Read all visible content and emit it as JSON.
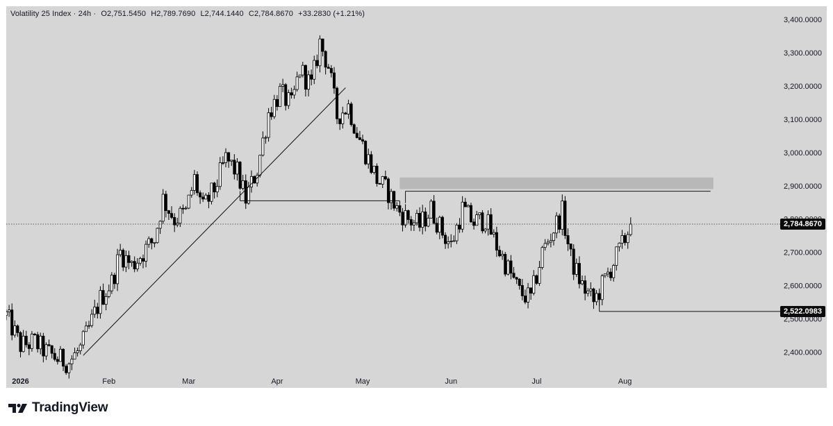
{
  "legend": {
    "symbol": "Volatility 25 Index · 24h ·",
    "open": "O2,751.5450",
    "high": "H2,789.7690",
    "low": "L2,744.1440",
    "close": "C2,784.8670",
    "change": "+33.2830 (+1.21%)"
  },
  "price_labels": {
    "current": "2,784.8670",
    "marked_low": "2,522.0983"
  },
  "branding": {
    "name": "TradingView",
    "logo_icon": "tradingview-logo-icon"
  },
  "colors": {
    "background": "#d6d6d6",
    "candle": "#000000",
    "zone": "#b8b8b8"
  },
  "chart_data": {
    "type": "candlestick",
    "y_axis": {
      "ticks": [
        "3,400.0000",
        "3,300.0000",
        "3,200.0000",
        "3,100.0000",
        "3,000.0000",
        "2,900.0000",
        "2,800.0000",
        "2,700.0000",
        "2,600.0000",
        "2,500.0000",
        "2,400.0000"
      ],
      "ylim": [
        2330,
        3440
      ]
    },
    "x_axis": {
      "ticks": [
        "2026",
        "Feb",
        "Mar",
        "Apr",
        "May",
        "Jun",
        "Jul",
        "Aug"
      ]
    },
    "close_path": [
      [
        "2025-12-27",
        2510
      ],
      [
        "2026-01-01",
        2420
      ],
      [
        "2026-01-06",
        2430
      ],
      [
        "2026-01-10",
        2400
      ],
      [
        "2026-01-14",
        2380
      ],
      [
        "2026-01-18",
        2370
      ],
      [
        "2026-01-22",
        2410
      ],
      [
        "2026-01-25",
        2470
      ],
      [
        "2026-01-29",
        2560
      ],
      [
        "2026-02-02",
        2610
      ],
      [
        "2026-02-05",
        2700
      ],
      [
        "2026-02-09",
        2660
      ],
      [
        "2026-02-13",
        2700
      ],
      [
        "2026-02-17",
        2740
      ],
      [
        "2026-02-20",
        2860
      ],
      [
        "2026-02-24",
        2800
      ],
      [
        "2026-02-28",
        2820
      ],
      [
        "2026-03-03",
        2920
      ],
      [
        "2026-03-06",
        2830
      ],
      [
        "2026-03-10",
        2890
      ],
      [
        "2026-03-14",
        2980
      ],
      [
        "2026-03-18",
        2940
      ],
      [
        "2026-03-21",
        2860
      ],
      [
        "2026-03-25",
        2950
      ],
      [
        "2026-03-29",
        3120
      ],
      [
        "2026-04-02",
        3180
      ],
      [
        "2026-04-06",
        3140
      ],
      [
        "2026-04-09",
        3250
      ],
      [
        "2026-04-13",
        3200
      ],
      [
        "2026-04-16",
        3330
      ],
      [
        "2026-04-19",
        3260
      ],
      [
        "2026-04-22",
        3110
      ],
      [
        "2026-04-26",
        3140
      ],
      [
        "2026-04-29",
        3060
      ],
      [
        "2026-05-03",
        2980
      ],
      [
        "2026-05-06",
        2920
      ],
      [
        "2026-05-10",
        2880
      ],
      [
        "2026-05-13",
        2830
      ],
      [
        "2026-05-17",
        2800
      ],
      [
        "2026-05-21",
        2780
      ],
      [
        "2026-05-25",
        2830
      ],
      [
        "2026-05-29",
        2760
      ],
      [
        "2026-06-01",
        2720
      ],
      [
        "2026-06-05",
        2830
      ],
      [
        "2026-06-09",
        2790
      ],
      [
        "2026-06-13",
        2800
      ],
      [
        "2026-06-17",
        2720
      ],
      [
        "2026-06-21",
        2650
      ],
      [
        "2026-06-25",
        2580
      ],
      [
        "2026-06-29",
        2560
      ],
      [
        "2026-07-03",
        2700
      ],
      [
        "2026-07-07",
        2770
      ],
      [
        "2026-07-10",
        2820
      ],
      [
        "2026-07-13",
        2680
      ],
      [
        "2026-07-17",
        2600
      ],
      [
        "2026-07-21",
        2550
      ],
      [
        "2026-07-24",
        2600
      ],
      [
        "2026-07-28",
        2670
      ],
      [
        "2026-07-31",
        2720
      ],
      [
        "2026-08-03",
        2785
      ]
    ],
    "last_close": 2784.867,
    "annotations": {
      "trendline": {
        "from": [
          "2026-01-23",
          2390
        ],
        "to": [
          "2026-04-25",
          3195
        ]
      },
      "support_line": {
        "price": 2855,
        "from": "2026-03-19",
        "to": "2026-05-14"
      },
      "resistance_line": {
        "price": 2865,
        "from": "2026-05-16",
        "to": "2026-08-31"
      },
      "supply_zone": {
        "price_top": 2925,
        "price_bottom": 2890,
        "from": "2026-05-14",
        "to": "2026-09-01"
      },
      "low_line": {
        "price": 2522.0983,
        "from": "2026-07-23",
        "to": "2026-09-20"
      },
      "current_price_line": 2784.867
    }
  }
}
